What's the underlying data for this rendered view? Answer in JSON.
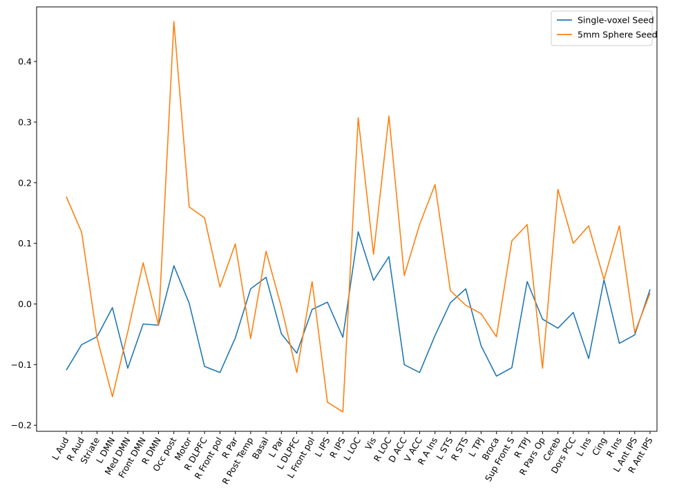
{
  "chart_data": {
    "type": "line",
    "title": "",
    "xlabel": "",
    "ylabel": "",
    "ylim": [
      -0.21,
      0.49
    ],
    "yticks": [
      -0.2,
      -0.1,
      0.0,
      0.1,
      0.2,
      0.3,
      0.4
    ],
    "ytick_labels": [
      "−0.2",
      "−0.1",
      "0.0",
      "0.1",
      "0.2",
      "0.3",
      "0.4"
    ],
    "grid": false,
    "legend_position": "top-right",
    "categories": [
      "L Aud",
      "R Aud",
      "Striate",
      "L DMN",
      "Med DMN",
      "Front DMN",
      "R DMN",
      "Occ post",
      "Motor",
      "R DLPFC",
      "R Front pol",
      "R Par",
      "R Post Temp",
      "Basal",
      "L Par",
      "L DLPFC",
      "L Front pol",
      "L IPS",
      "R IPS",
      "L LOC",
      "Vis",
      "R LOC",
      "D ACC",
      "V ACC",
      "R A Ins",
      "L STS",
      "R STS",
      "L TPJ",
      "Broca",
      "Sup Front S",
      "R TPJ",
      "R Pars Op",
      "Cereb",
      "Dors PCC",
      "L Ins",
      "Cing",
      "R Ins",
      "L Ant IPS",
      "R Ant IPS"
    ],
    "series": [
      {
        "name": "Single-voxel Seed",
        "color": "#1f77b4",
        "values": [
          -0.109,
          -0.067,
          -0.054,
          -0.006,
          -0.106,
          -0.033,
          -0.035,
          0.063,
          0.001,
          -0.103,
          -0.113,
          -0.056,
          0.025,
          0.044,
          -0.049,
          -0.081,
          -0.009,
          0.003,
          -0.055,
          0.119,
          0.039,
          0.078,
          -0.1,
          -0.113,
          -0.052,
          0.002,
          0.025,
          -0.069,
          -0.119,
          -0.105,
          0.037,
          -0.025,
          -0.04,
          -0.014,
          -0.09,
          0.04,
          -0.065,
          -0.051,
          0.024
        ]
      },
      {
        "name": "5mm Sphere Seed",
        "color": "#ff7f0e",
        "values": [
          0.177,
          0.118,
          -0.056,
          -0.153,
          -0.046,
          0.068,
          -0.035,
          0.466,
          0.16,
          0.142,
          0.028,
          0.099,
          -0.057,
          0.087,
          -0.005,
          -0.113,
          0.037,
          -0.162,
          -0.178,
          0.307,
          0.082,
          0.31,
          0.047,
          0.131,
          0.197,
          0.022,
          -0.002,
          -0.016,
          -0.054,
          0.104,
          0.131,
          -0.106,
          0.189,
          0.1,
          0.129,
          0.04,
          0.129,
          -0.047,
          0.018
        ]
      }
    ]
  }
}
